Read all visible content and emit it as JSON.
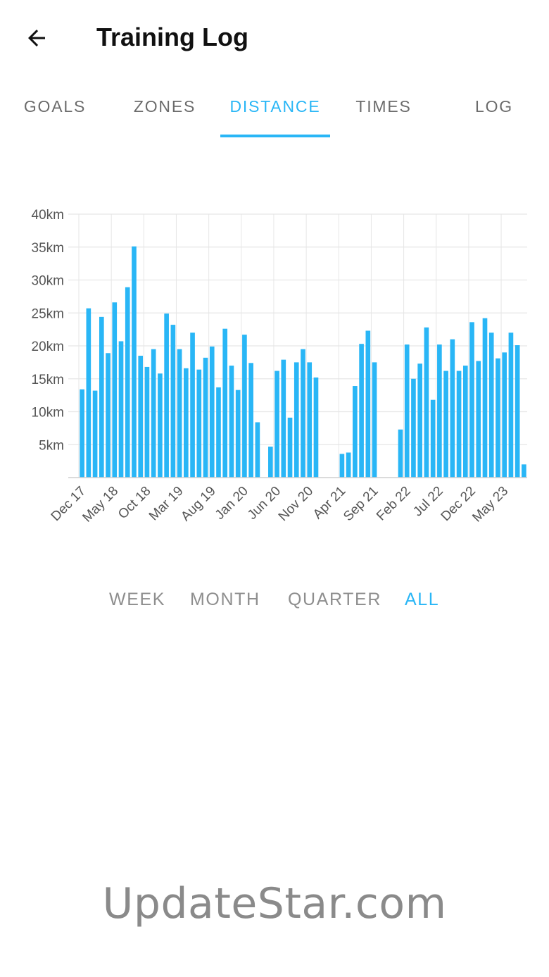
{
  "app_bar": {
    "title": "Training Log",
    "back_icon": "arrow-left-icon"
  },
  "tabs": [
    {
      "label": "GOALS",
      "active": false
    },
    {
      "label": "ZONES",
      "active": false
    },
    {
      "label": "DISTANCE",
      "active": true
    },
    {
      "label": "TIMES",
      "active": false
    },
    {
      "label": "LOG",
      "active": false
    }
  ],
  "ranges": [
    {
      "label": "WEEK",
      "active": false
    },
    {
      "label": "MONTH",
      "active": false
    },
    {
      "label": "QUARTER",
      "active": false
    },
    {
      "label": "ALL",
      "active": true
    }
  ],
  "watermark": "UpdateStar.com",
  "colors": {
    "accent": "#29b6f6",
    "bar": "#29b6f6",
    "tab_inactive": "#6b6b6b",
    "range_inactive": "#8e8e8e",
    "grid": "#e6e6e6",
    "axis_text": "#555555"
  },
  "chart_data": {
    "type": "bar",
    "unit": "km",
    "ylim": [
      0,
      40
    ],
    "yticks": [
      "5km",
      "10km",
      "15km",
      "20km",
      "25km",
      "30km",
      "35km",
      "40km"
    ],
    "ytick_values": [
      5,
      10,
      15,
      20,
      25,
      30,
      35,
      40
    ],
    "xtick_labels": [
      "Dec 17",
      "May 18",
      "Oct 18",
      "Mar 19",
      "Aug 19",
      "Jan 20",
      "Jun 20",
      "Nov 20",
      "Apr 21",
      "Sep 21",
      "Feb 22",
      "Jul 22",
      "Dec 22",
      "May 23"
    ],
    "xtick_month_index": [
      0,
      5,
      10,
      15,
      20,
      25,
      30,
      35,
      40,
      45,
      50,
      55,
      60,
      65
    ],
    "grid": true,
    "legend": "none",
    "series": [
      {
        "values": [
          13.4,
          25.7,
          13.2,
          24.4,
          18.9,
          26.6,
          20.7,
          28.9,
          35.1,
          18.5,
          16.8,
          19.5,
          15.8,
          24.9,
          23.2,
          19.5,
          16.6,
          22.0,
          16.4,
          18.2,
          19.9,
          13.7,
          22.6,
          17.0,
          13.3,
          21.7,
          17.4,
          8.4,
          0,
          4.7,
          16.2,
          17.9,
          9.1,
          17.5,
          19.5,
          17.5,
          15.2,
          0,
          0,
          0,
          3.6,
          3.8,
          13.9,
          20.3,
          22.3,
          17.5,
          0,
          0,
          0,
          7.3,
          20.2,
          15.0,
          17.3,
          22.8,
          11.8,
          20.2,
          16.2,
          21.0,
          16.2,
          17.0,
          23.6,
          17.7,
          24.2,
          22.0,
          18.1,
          19.0,
          22.0,
          20.1,
          2.0
        ]
      }
    ]
  }
}
